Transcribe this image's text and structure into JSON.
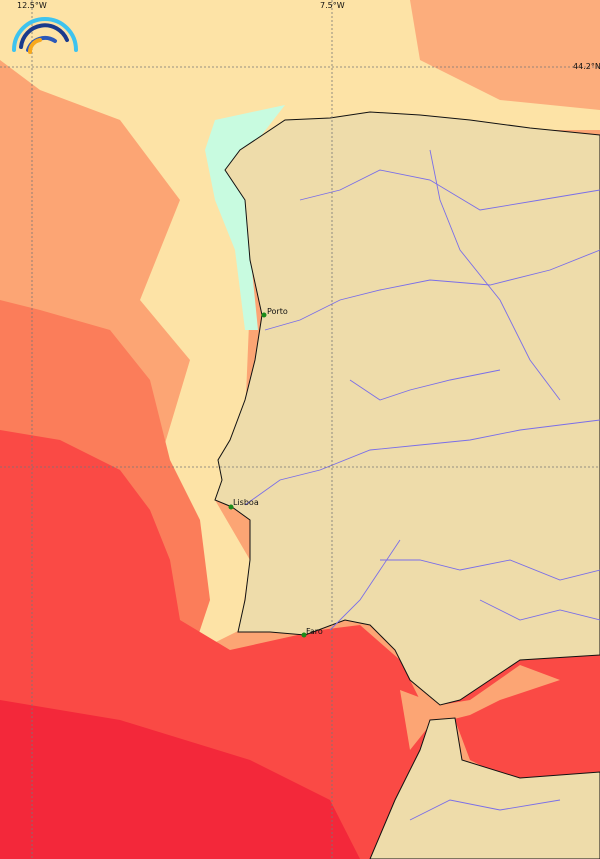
{
  "map": {
    "grid_labels": {
      "lon_west": "12.5°W",
      "lon_east": "7.5°W",
      "lat": "44.2°N"
    },
    "cities": [
      {
        "name": "Porto"
      },
      {
        "name": "Lisboa"
      },
      {
        "name": "Faro"
      }
    ],
    "logo": "rainbow-arcs-logo",
    "colors": {
      "land": "#eedcaa",
      "river": "#7a6ee8",
      "sea_cool": "#c8fbe0",
      "sea_light": "#fde3a6",
      "sea_orange": "#fca574",
      "sea_coral": "#fb7d5a",
      "sea_red": "#fa4a45",
      "sea_deep": "#f3283a",
      "city_marker": "#1a8a1a"
    }
  }
}
